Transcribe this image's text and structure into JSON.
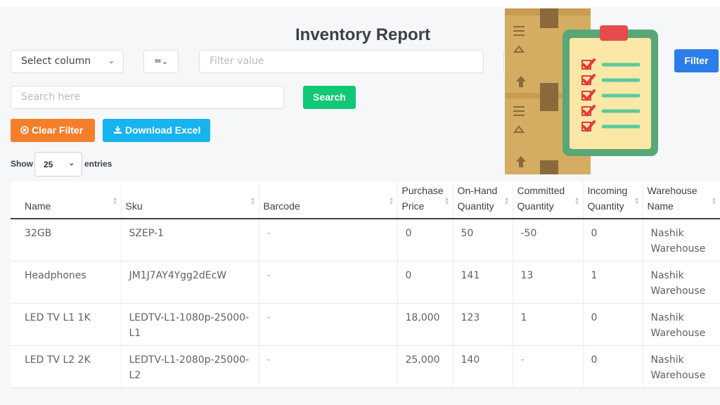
{
  "page": {
    "title": "Inventory Report"
  },
  "filters": {
    "column_select": "Select column",
    "operator": "=",
    "value_placeholder": "Filter value",
    "filter_button": "Filter",
    "search_placeholder": "Search here",
    "search_button": "Search",
    "clear_button": "Clear Filter",
    "download_button": "Download Excel"
  },
  "entries": {
    "show_label": "Show",
    "value": "25",
    "suffix": "entries"
  },
  "colors": {
    "filter": "#2b7de9",
    "search": "#10c875",
    "clear": "#f47f2a",
    "download": "#18b4f0"
  },
  "table": {
    "headers": [
      [
        "Name"
      ],
      [
        "Sku"
      ],
      [
        "Barcode"
      ],
      [
        "Purchase",
        "Price"
      ],
      [
        "On-Hand",
        "Quantity"
      ],
      [
        "Committed",
        "Quantity"
      ],
      [
        "Incoming",
        "Quantity"
      ],
      [
        "Warehouse",
        "Name"
      ]
    ],
    "rows": [
      [
        "32GB",
        "SZEP-1",
        "-",
        "0",
        "50",
        "-50",
        "0",
        "Nashik Warehouse"
      ],
      [
        "Headphones",
        "JM1J7AY4Ygg2dEcW",
        "-",
        "0",
        "141",
        "13",
        "1",
        "Nashik Warehouse"
      ],
      [
        "LED TV L1 1K",
        "LEDTV-L1-1080p-25000-L1",
        "-",
        "18,000",
        "123",
        "1",
        "0",
        "Nashik Warehouse"
      ],
      [
        "LED TV L2 2K",
        "LEDTV-L1-2080p-25000-L2",
        "-",
        "25,000",
        "140",
        "-",
        "0",
        "Nashik Warehouse"
      ]
    ]
  },
  "icons": {
    "clear": "times-circle-icon",
    "download": "download-icon",
    "illustration": "inventory-clipboard-illustration"
  }
}
